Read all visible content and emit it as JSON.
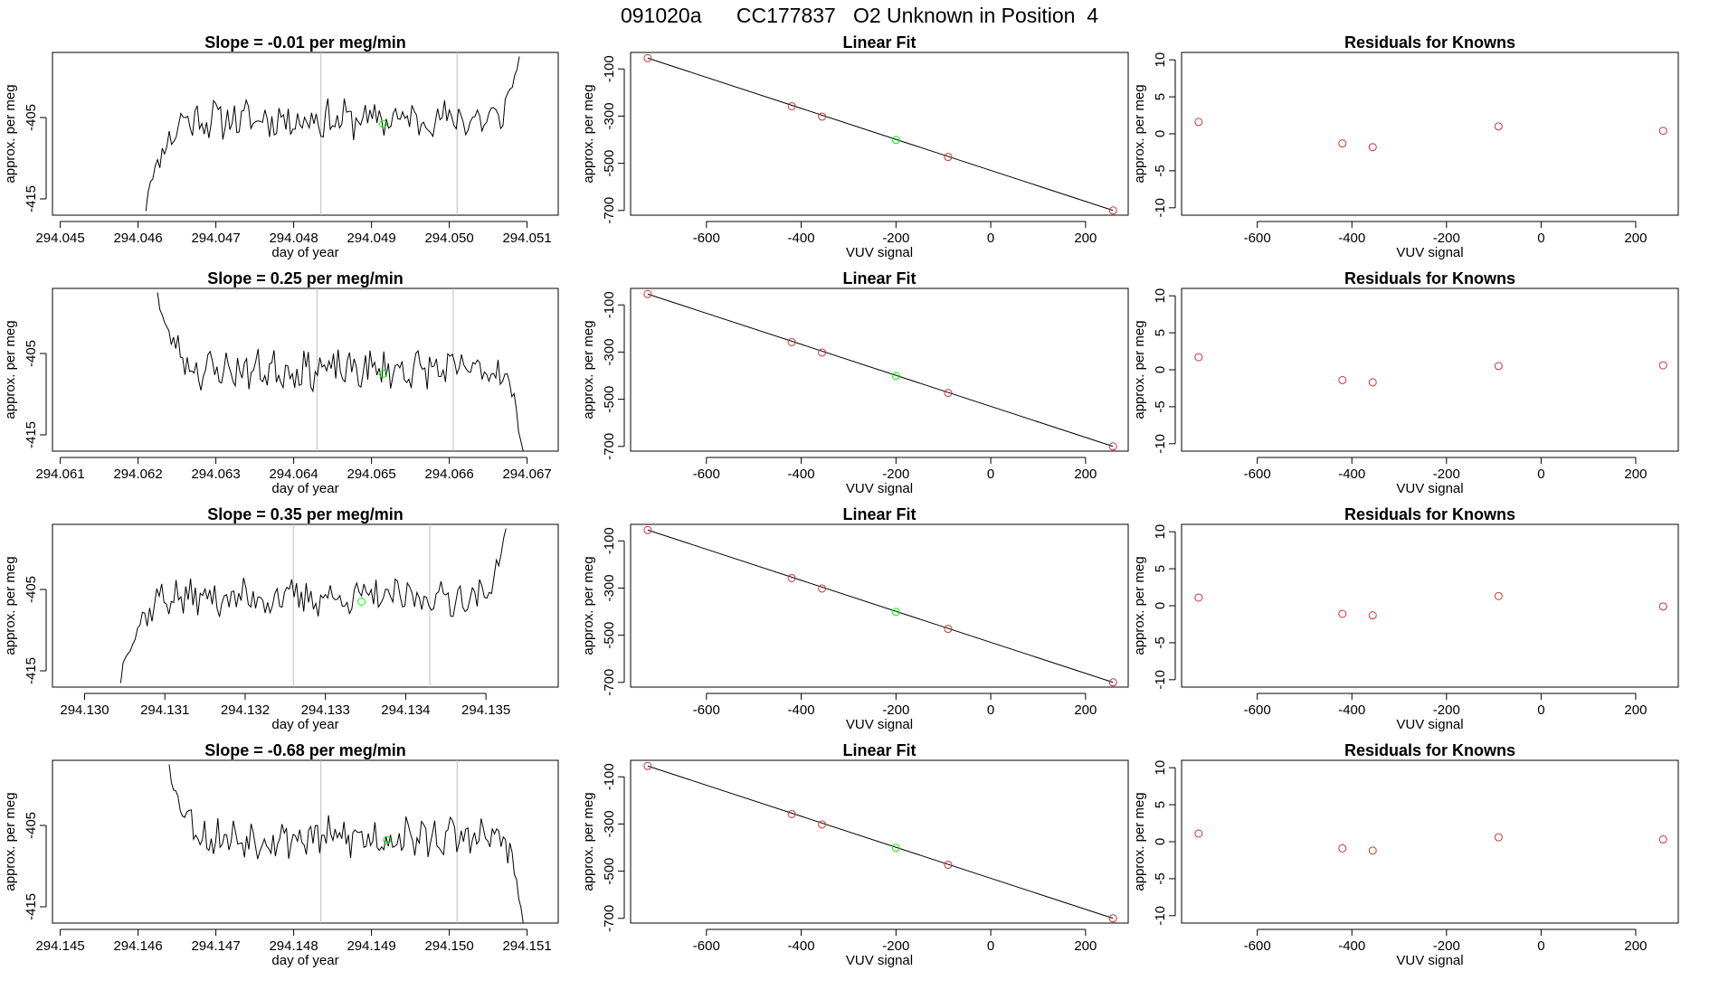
{
  "figure": {
    "title": "091020a      CC177837   O2 Unknown in Position  4"
  },
  "colors": {
    "trace": "#000000",
    "frame": "#000000",
    "vline": "#bebebe",
    "unknown_point": "#00ff00",
    "known_point": "#cd3333"
  },
  "chart_data": [
    {
      "type": "line",
      "row": 0,
      "panel": "timeseries",
      "title": "Slope =  -0.01  per meg/min",
      "xlabel": "day of year",
      "ylabel": "approx. per meg",
      "xlim": [
        294.0449,
        294.0514
      ],
      "ylim": [
        -417,
        -397
      ],
      "xticks": [
        "294.045",
        "294.046",
        "294.047",
        "294.048",
        "294.049",
        "294.050",
        "294.051"
      ],
      "xtick_values": [
        294.045,
        294.046,
        294.047,
        294.048,
        294.049,
        294.05,
        294.051
      ],
      "yticks": [
        "-415",
        "-405"
      ],
      "ytick_values": [
        -415,
        -405
      ],
      "vlines": [
        294.04835,
        294.0501
      ],
      "trace": {
        "start": 294.0461,
        "end": 294.0509,
        "pre": -416.5,
        "post": -397.5,
        "mean": -405.2,
        "amp": 2.0,
        "seed": 11
      },
      "unknown_point": {
        "x": 294.04915,
        "y": -405.8
      }
    },
    {
      "type": "scatter",
      "row": 0,
      "panel": "fit",
      "title": "Linear Fit",
      "xlabel": "VUV signal",
      "ylabel": "approx. per meg",
      "xlim": [
        -760,
        290
      ],
      "ylim": [
        -720,
        -30
      ],
      "xticks": [
        "-600",
        "-400",
        "-200",
        "0",
        "200"
      ],
      "xtick_values": [
        -600,
        -400,
        -200,
        0,
        200
      ],
      "yticks": [
        "-100",
        "-300",
        "-500",
        "-700"
      ],
      "ytick_values": [
        -100,
        -300,
        -500,
        -700
      ],
      "fit_line": {
        "x": [
          -724,
          258
        ],
        "y": [
          -54,
          -700
        ]
      },
      "knowns": {
        "x": [
          -724,
          -420,
          -356,
          -90,
          258
        ],
        "y": [
          -54,
          -258,
          -302,
          -473,
          -700
        ]
      },
      "unknown": {
        "x": -200,
        "y": -401
      }
    },
    {
      "type": "scatter",
      "row": 0,
      "panel": "residuals",
      "title": "Residuals for Knowns",
      "xlabel": "VUV signal",
      "ylabel": "approx. per meg",
      "xlim": [
        -760,
        290
      ],
      "ylim": [
        -11,
        11
      ],
      "xticks": [
        "-600",
        "-400",
        "-200",
        "0",
        "200"
      ],
      "xtick_values": [
        -600,
        -400,
        -200,
        0,
        200
      ],
      "yticks": [
        "-10",
        "-5",
        "0",
        "5",
        "10"
      ],
      "ytick_values": [
        -10,
        -5,
        0,
        5,
        10
      ],
      "points": {
        "x": [
          -724,
          -420,
          -356,
          -90,
          258
        ],
        "y": [
          1.6,
          -1.3,
          -1.8,
          1.0,
          0.4
        ]
      }
    },
    {
      "type": "line",
      "row": 1,
      "panel": "timeseries",
      "title": "Slope =  0.25  per meg/min",
      "xlabel": "day of year",
      "ylabel": "approx. per meg",
      "xlim": [
        294.0609,
        294.0674
      ],
      "ylim": [
        -417,
        -397
      ],
      "xticks": [
        "294.061",
        "294.062",
        "294.063",
        "294.064",
        "294.065",
        "294.066",
        "294.067"
      ],
      "xtick_values": [
        294.061,
        294.062,
        294.063,
        294.064,
        294.065,
        294.066,
        294.067
      ],
      "yticks": [
        "-415",
        "-405"
      ],
      "ytick_values": [
        -415,
        -405
      ],
      "vlines": [
        294.0643,
        294.06605
      ],
      "trace": {
        "start": 294.06225,
        "end": 294.06695,
        "pre": -397.5,
        "post": -417.0,
        "mean": -407.0,
        "amp": 2.0,
        "seed": 23
      },
      "unknown_point": {
        "x": 294.06515,
        "y": -407.5
      }
    },
    {
      "type": "scatter",
      "row": 1,
      "panel": "fit",
      "title": "Linear Fit",
      "xlabel": "VUV signal",
      "ylabel": "approx. per meg",
      "xlim": [
        -760,
        290
      ],
      "ylim": [
        -720,
        -30
      ],
      "xticks": [
        "-600",
        "-400",
        "-200",
        "0",
        "200"
      ],
      "xtick_values": [
        -600,
        -400,
        -200,
        0,
        200
      ],
      "yticks": [
        "-100",
        "-300",
        "-500",
        "-700"
      ],
      "ytick_values": [
        -100,
        -300,
        -500,
        -700
      ],
      "fit_line": {
        "x": [
          -724,
          258
        ],
        "y": [
          -54,
          -700
        ]
      },
      "knowns": {
        "x": [
          -724,
          -420,
          -356,
          -90,
          258
        ],
        "y": [
          -54,
          -258,
          -302,
          -473,
          -700
        ]
      },
      "unknown": {
        "x": -200,
        "y": -401
      }
    },
    {
      "type": "scatter",
      "row": 1,
      "panel": "residuals",
      "title": "Residuals for Knowns",
      "xlabel": "VUV signal",
      "ylabel": "approx. per meg",
      "xlim": [
        -760,
        290
      ],
      "ylim": [
        -11,
        11
      ],
      "xticks": [
        "-600",
        "-400",
        "-200",
        "0",
        "200"
      ],
      "xtick_values": [
        -600,
        -400,
        -200,
        0,
        200
      ],
      "yticks": [
        "-10",
        "-5",
        "0",
        "5",
        "10"
      ],
      "ytick_values": [
        -10,
        -5,
        0,
        5,
        10
      ],
      "points": {
        "x": [
          -724,
          -420,
          -356,
          -90,
          258
        ],
        "y": [
          1.7,
          -1.4,
          -1.7,
          0.5,
          0.6
        ]
      }
    },
    {
      "type": "line",
      "row": 2,
      "panel": "timeseries",
      "title": "Slope =  0.35  per meg/min",
      "xlabel": "day of year",
      "ylabel": "approx. per meg",
      "xlim": [
        294.1296,
        294.1359
      ],
      "ylim": [
        -417,
        -397
      ],
      "xticks": [
        "294.130",
        "294.131",
        "294.132",
        "294.133",
        "294.134",
        "294.135"
      ],
      "xtick_values": [
        294.13,
        294.131,
        294.132,
        294.133,
        294.134,
        294.135
      ],
      "yticks": [
        "-415",
        "-405"
      ],
      "ytick_values": [
        -415,
        -405
      ],
      "vlines": [
        294.1326,
        294.1343
      ],
      "trace": {
        "start": 294.13045,
        "end": 294.13525,
        "pre": -416.5,
        "post": -397.5,
        "mean": -406.0,
        "amp": 1.9,
        "seed": 37
      },
      "unknown_point": {
        "x": 294.13345,
        "y": -406.5
      }
    },
    {
      "type": "scatter",
      "row": 2,
      "panel": "fit",
      "title": "Linear Fit",
      "xlabel": "VUV signal",
      "ylabel": "approx. per meg",
      "xlim": [
        -760,
        290
      ],
      "ylim": [
        -720,
        -30
      ],
      "xticks": [
        "-600",
        "-400",
        "-200",
        "0",
        "200"
      ],
      "xtick_values": [
        -600,
        -400,
        -200,
        0,
        200
      ],
      "yticks": [
        "-100",
        "-300",
        "-500",
        "-700"
      ],
      "ytick_values": [
        -100,
        -300,
        -500,
        -700
      ],
      "fit_line": {
        "x": [
          -724,
          258
        ],
        "y": [
          -54,
          -700
        ]
      },
      "knowns": {
        "x": [
          -724,
          -420,
          -356,
          -90,
          258
        ],
        "y": [
          -54,
          -258,
          -302,
          -473,
          -700
        ]
      },
      "unknown": {
        "x": -200,
        "y": -401
      }
    },
    {
      "type": "scatter",
      "row": 2,
      "panel": "residuals",
      "title": "Residuals for Knowns",
      "xlabel": "VUV signal",
      "ylabel": "approx. per meg",
      "xlim": [
        -760,
        290
      ],
      "ylim": [
        -11,
        11
      ],
      "xticks": [
        "-600",
        "-400",
        "-200",
        "0",
        "200"
      ],
      "xtick_values": [
        -600,
        -400,
        -200,
        0,
        200
      ],
      "yticks": [
        "-10",
        "-5",
        "0",
        "5",
        "10"
      ],
      "ytick_values": [
        -10,
        -5,
        0,
        5,
        10
      ],
      "points": {
        "x": [
          -724,
          -420,
          -356,
          -90,
          258
        ],
        "y": [
          1.1,
          -1.1,
          -1.3,
          1.3,
          -0.1
        ]
      }
    },
    {
      "type": "line",
      "row": 3,
      "panel": "timeseries",
      "title": "Slope =  -0.68  per meg/min",
      "xlabel": "day of year",
      "ylabel": "approx. per meg",
      "xlim": [
        294.1449,
        294.1514
      ],
      "ylim": [
        -417,
        -397
      ],
      "xticks": [
        "294.145",
        "294.146",
        "294.147",
        "294.148",
        "294.149",
        "294.150",
        "294.151"
      ],
      "xtick_values": [
        294.145,
        294.146,
        294.147,
        294.148,
        294.149,
        294.15,
        294.151
      ],
      "yticks": [
        "-415",
        "-405"
      ],
      "ytick_values": [
        -415,
        -405
      ],
      "vlines": [
        294.14835,
        294.1501
      ],
      "trace": {
        "start": 294.1464,
        "end": 294.15095,
        "pre": -397.5,
        "post": -417.0,
        "mean": -406.5,
        "amp": 2.1,
        "seed": 53
      },
      "unknown_point": {
        "x": 294.1492,
        "y": -406.8
      }
    },
    {
      "type": "scatter",
      "row": 3,
      "panel": "fit",
      "title": "Linear Fit",
      "xlabel": "VUV signal",
      "ylabel": "approx. per meg",
      "xlim": [
        -760,
        290
      ],
      "ylim": [
        -720,
        -30
      ],
      "xticks": [
        "-600",
        "-400",
        "-200",
        "0",
        "200"
      ],
      "xtick_values": [
        -600,
        -400,
        -200,
        0,
        200
      ],
      "yticks": [
        "-100",
        "-300",
        "-500",
        "-700"
      ],
      "ytick_values": [
        -100,
        -300,
        -500,
        -700
      ],
      "fit_line": {
        "x": [
          -724,
          258
        ],
        "y": [
          -54,
          -700
        ]
      },
      "knowns": {
        "x": [
          -724,
          -420,
          -356,
          -90,
          258
        ],
        "y": [
          -54,
          -258,
          -302,
          -473,
          -700
        ]
      },
      "unknown": {
        "x": -200,
        "y": -401
      }
    },
    {
      "type": "scatter",
      "row": 3,
      "panel": "residuals",
      "title": "Residuals for Knowns",
      "xlabel": "VUV signal",
      "ylabel": "approx. per meg",
      "xlim": [
        -760,
        290
      ],
      "ylim": [
        -11,
        11
      ],
      "xticks": [
        "-600",
        "-400",
        "-200",
        "0",
        "200"
      ],
      "xtick_values": [
        -600,
        -400,
        -200,
        0,
        200
      ],
      "yticks": [
        "-10",
        "-5",
        "0",
        "5",
        "10"
      ],
      "ytick_values": [
        -10,
        -5,
        0,
        5,
        10
      ],
      "points": {
        "x": [
          -724,
          -420,
          -356,
          -90,
          258
        ],
        "y": [
          1.1,
          -0.9,
          -1.2,
          0.6,
          0.3
        ]
      }
    }
  ]
}
